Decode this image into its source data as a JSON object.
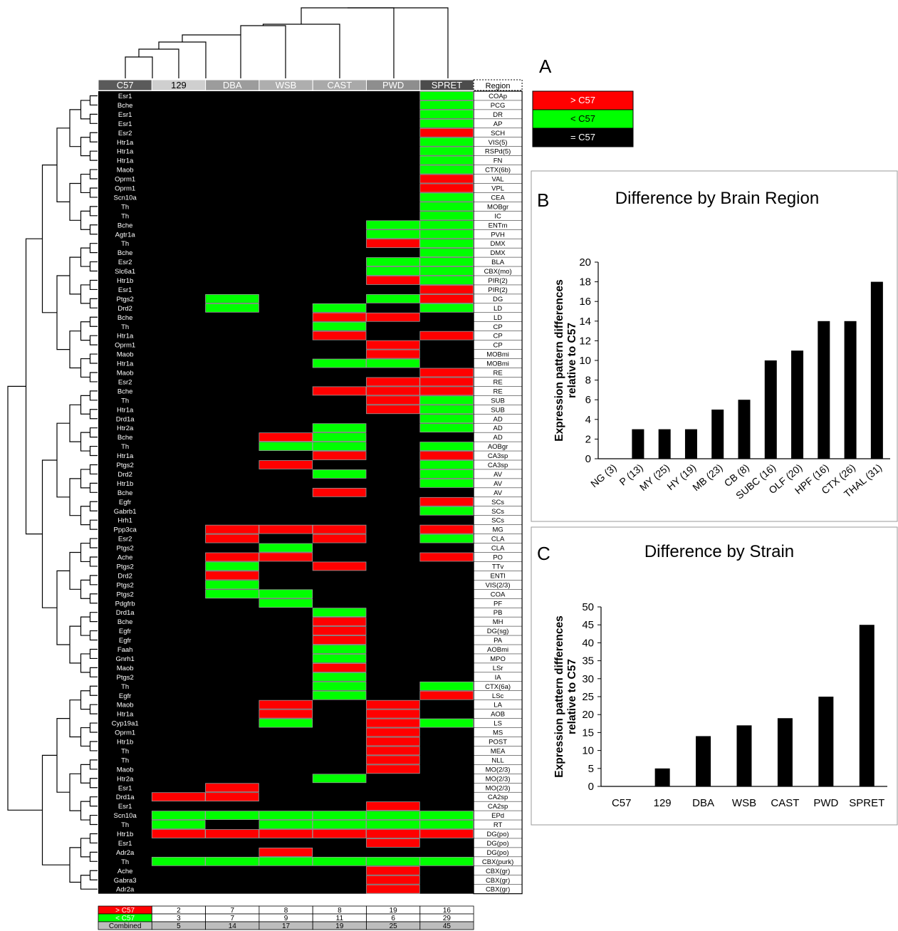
{
  "panel_labels": {
    "a": "A",
    "b": "B",
    "c": "C"
  },
  "legend": [
    {
      "label": "> C57",
      "color": "#ff0000"
    },
    {
      "label": "< C57",
      "color": "#00ff00"
    },
    {
      "label": "= C57",
      "color": "#000000"
    }
  ],
  "colors": {
    "higher": "#ff0000",
    "lower": "#00ff00",
    "equal": "#000000"
  },
  "heatmap": {
    "strains": [
      "C57",
      "129",
      "DBA",
      "WSB",
      "CAST",
      "PWD",
      "SPRET"
    ],
    "region_header": "Region",
    "code_key": {
      "0": "= C57",
      "1": "> C57",
      "2": "< C57"
    },
    "rows": [
      {
        "gene": "Esr1",
        "region": "COAp",
        "codes": "0000002"
      },
      {
        "gene": "Bche",
        "region": "PCG",
        "codes": "0000002"
      },
      {
        "gene": "Esr1",
        "region": "DR",
        "codes": "0000002"
      },
      {
        "gene": "Esr1",
        "region": "AP",
        "codes": "0000002"
      },
      {
        "gene": "Esr2",
        "region": "SCH",
        "codes": "0000001"
      },
      {
        "gene": "Htr1a",
        "region": "VIS(5)",
        "codes": "0000002"
      },
      {
        "gene": "Htr1a",
        "region": "RSPd(5)",
        "codes": "0000002"
      },
      {
        "gene": "Htr1a",
        "region": "FN",
        "codes": "0000002"
      },
      {
        "gene": "Maob",
        "region": "CTX(6b)",
        "codes": "0000002"
      },
      {
        "gene": "Oprm1",
        "region": "VAL",
        "codes": "0000001"
      },
      {
        "gene": "Oprm1",
        "region": "VPL",
        "codes": "0000001"
      },
      {
        "gene": "Scn10a",
        "region": "CEA",
        "codes": "0000002"
      },
      {
        "gene": "Th",
        "region": "MOBgr",
        "codes": "0000002"
      },
      {
        "gene": "Th",
        "region": "IC",
        "codes": "0000002"
      },
      {
        "gene": "Bche",
        "region": "ENTm",
        "codes": "0000022"
      },
      {
        "gene": "Agtr1a",
        "region": "PVH",
        "codes": "0000022"
      },
      {
        "gene": "Th",
        "region": "DMX",
        "codes": "0000012"
      },
      {
        "gene": "Bche",
        "region": "DMX",
        "codes": "0000002"
      },
      {
        "gene": "Esr2",
        "region": "BLA",
        "codes": "0000022"
      },
      {
        "gene": "Slc6a1",
        "region": "CBX(mo)",
        "codes": "0000022"
      },
      {
        "gene": "Htr1b",
        "region": "PIR(2)",
        "codes": "0000012"
      },
      {
        "gene": "Esr1",
        "region": "PIR(2)",
        "codes": "0000001"
      },
      {
        "gene": "Ptgs2",
        "region": "DG",
        "codes": "0020021"
      },
      {
        "gene": "Drd2",
        "region": "LD",
        "codes": "0020202"
      },
      {
        "gene": "Bche",
        "region": "LD",
        "codes": "0000110"
      },
      {
        "gene": "Th",
        "region": "CP",
        "codes": "0000200"
      },
      {
        "gene": "Htr1a",
        "region": "CP",
        "codes": "0000101"
      },
      {
        "gene": "Oprm1",
        "region": "CP",
        "codes": "0000010"
      },
      {
        "gene": "Maob",
        "region": "MOBmi",
        "codes": "0000010"
      },
      {
        "gene": "Htr1a",
        "region": "MOBmi",
        "codes": "0000220"
      },
      {
        "gene": "Maob",
        "region": "RE",
        "codes": "0000001"
      },
      {
        "gene": "Esr2",
        "region": "RE",
        "codes": "0000011"
      },
      {
        "gene": "Bche",
        "region": "RE",
        "codes": "0000111"
      },
      {
        "gene": "Th",
        "region": "SUB",
        "codes": "0000012"
      },
      {
        "gene": "Htr1a",
        "region": "SUB",
        "codes": "0000012"
      },
      {
        "gene": "Drd1a",
        "region": "AD",
        "codes": "0000002"
      },
      {
        "gene": "Htr2a",
        "region": "AD",
        "codes": "0000202"
      },
      {
        "gene": "Bche",
        "region": "AD",
        "codes": "0001200"
      },
      {
        "gene": "Th",
        "region": "AOBgr",
        "codes": "0002202"
      },
      {
        "gene": "Htr1a",
        "region": "CA3sp",
        "codes": "0000101"
      },
      {
        "gene": "Ptgs2",
        "region": "CA3sp",
        "codes": "0001002"
      },
      {
        "gene": "Drd2",
        "region": "AV",
        "codes": "0000202"
      },
      {
        "gene": "Htr1b",
        "region": "AV",
        "codes": "0000002"
      },
      {
        "gene": "Bche",
        "region": "AV",
        "codes": "0000100"
      },
      {
        "gene": "Egfr",
        "region": "SCs",
        "codes": "0000001"
      },
      {
        "gene": "Gabrb1",
        "region": "SCs",
        "codes": "0000002"
      },
      {
        "gene": "Hrh1",
        "region": "SCs",
        "codes": "0000000"
      },
      {
        "gene": "Ppp3ca",
        "region": "MG",
        "codes": "0011101"
      },
      {
        "gene": "Esr2",
        "region": "CLA",
        "codes": "0010102"
      },
      {
        "gene": "Ptgs2",
        "region": "CLA",
        "codes": "0002000"
      },
      {
        "gene": "Ache",
        "region": "PO",
        "codes": "0011001"
      },
      {
        "gene": "Ptgs2",
        "region": "TTv",
        "codes": "0020100"
      },
      {
        "gene": "Drd2",
        "region": "ENTl",
        "codes": "0010000"
      },
      {
        "gene": "Ptgs2",
        "region": "VIS(2/3)",
        "codes": "0020000"
      },
      {
        "gene": "Ptgs2",
        "region": "COA",
        "codes": "0022000"
      },
      {
        "gene": "Pdgfrb",
        "region": "PF",
        "codes": "0002000"
      },
      {
        "gene": "Drd1a",
        "region": "PB",
        "codes": "0000200"
      },
      {
        "gene": "Bche",
        "region": "MH",
        "codes": "0000100"
      },
      {
        "gene": "Egfr",
        "region": "DG(sg)",
        "codes": "0000100"
      },
      {
        "gene": "Egfr",
        "region": "PA",
        "codes": "0000100"
      },
      {
        "gene": "Faah",
        "region": "AOBmi",
        "codes": "0000200"
      },
      {
        "gene": "Gnrh1",
        "region": "MPO",
        "codes": "0000200"
      },
      {
        "gene": "Maob",
        "region": "LSr",
        "codes": "0000100"
      },
      {
        "gene": "Ptgs2",
        "region": "IA",
        "codes": "0000200"
      },
      {
        "gene": "Th",
        "region": "CTX(6a)",
        "codes": "0000202"
      },
      {
        "gene": "Egfr",
        "region": "LSc",
        "codes": "0000201"
      },
      {
        "gene": "Maob",
        "region": "LA",
        "codes": "0001010"
      },
      {
        "gene": "Htr1a",
        "region": "AOB",
        "codes": "0001010"
      },
      {
        "gene": "Cyp19a1",
        "region": "LS",
        "codes": "0002012"
      },
      {
        "gene": "Oprm1",
        "region": "MS",
        "codes": "0000010"
      },
      {
        "gene": "Htr1b",
        "region": "POST",
        "codes": "0000010"
      },
      {
        "gene": "Th",
        "region": "MEA",
        "codes": "0000010"
      },
      {
        "gene": "Th",
        "region": "NLL",
        "codes": "0000010"
      },
      {
        "gene": "Maob",
        "region": "MO(2/3)",
        "codes": "0000010"
      },
      {
        "gene": "Htr2a",
        "region": "MO(2/3)",
        "codes": "0000200"
      },
      {
        "gene": "Esr1",
        "region": "MO(2/3)",
        "codes": "0010000"
      },
      {
        "gene": "Drd1a",
        "region": "CA2sp",
        "codes": "0110000"
      },
      {
        "gene": "Esr1",
        "region": "CA2sp",
        "codes": "0000010"
      },
      {
        "gene": "Scn10a",
        "region": "EPd",
        "codes": "0222222"
      },
      {
        "gene": "Th",
        "region": "RT",
        "codes": "0202222"
      },
      {
        "gene": "Htr1b",
        "region": "DG(po)",
        "codes": "0111111"
      },
      {
        "gene": "Esr1",
        "region": "DG(po)",
        "codes": "0000010"
      },
      {
        "gene": "Adr2a",
        "region": "DG(po)",
        "codes": "0001000"
      },
      {
        "gene": "Th",
        "region": "CBX(purk)",
        "codes": "0222222"
      },
      {
        "gene": "Ache",
        "region": "CBX(gr)",
        "codes": "0000010"
      },
      {
        "gene": "Gabra3",
        "region": "CBX(gr)",
        "codes": "0000010"
      },
      {
        "gene": "Adr2a",
        "region": "CBX(gr)",
        "codes": "0000010"
      }
    ],
    "summary": [
      {
        "label": "> C57",
        "values": [
          "2",
          "7",
          "8",
          "8",
          "19",
          "16"
        ]
      },
      {
        "label": "< C57",
        "values": [
          "3",
          "7",
          "9",
          "11",
          "6",
          "29"
        ]
      },
      {
        "label": "Combined",
        "values": [
          "5",
          "14",
          "17",
          "19",
          "25",
          "45"
        ]
      }
    ]
  },
  "chart_data": [
    {
      "type": "bar",
      "title": "Difference by Brain Region",
      "ylabel": "Expression pattern differences relative to C57",
      "xlabel": "",
      "categories": [
        "NG (3)",
        "P (13)",
        "MY (25)",
        "HY (19)",
        "MB (23)",
        "CB (8)",
        "SUBC (16)",
        "OLF (20)",
        "HPF (16)",
        "CTX (26)",
        "THAL (31)"
      ],
      "values": [
        0,
        3,
        3,
        3,
        5,
        6,
        10,
        11,
        14,
        14,
        18
      ],
      "ylim": [
        0,
        20
      ],
      "yticks": [
        0,
        2,
        4,
        6,
        8,
        10,
        12,
        14,
        16,
        18,
        20
      ],
      "grid": false,
      "legend": "none"
    },
    {
      "type": "bar",
      "title": "Difference by Strain",
      "ylabel": "Expression pattern differences relative to C57",
      "xlabel": "",
      "categories": [
        "C57",
        "129",
        "DBA",
        "WSB",
        "CAST",
        "PWD",
        "SPRET"
      ],
      "values": [
        0,
        5,
        14,
        17,
        19,
        25,
        45
      ],
      "ylim": [
        0,
        50
      ],
      "yticks": [
        0,
        5,
        10,
        15,
        20,
        25,
        30,
        35,
        40,
        45,
        50
      ],
      "grid": false,
      "legend": "none"
    }
  ]
}
